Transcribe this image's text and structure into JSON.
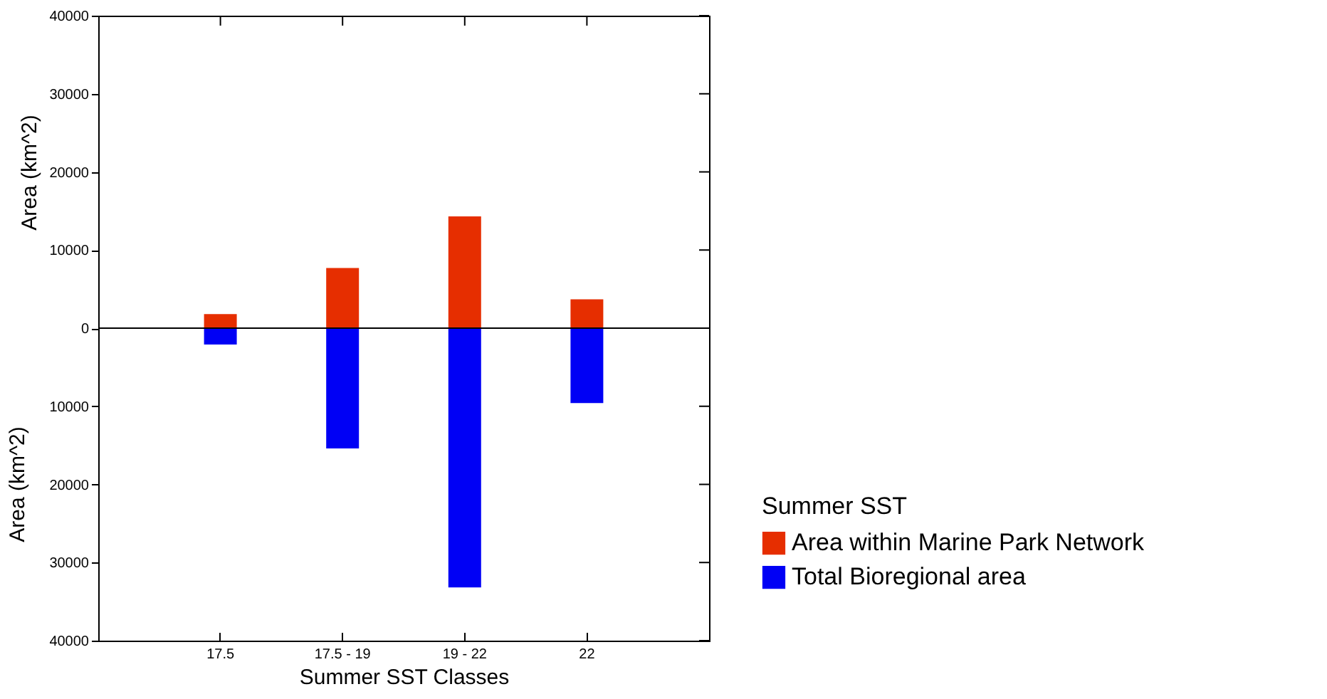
{
  "chart_data": {
    "type": "bar",
    "xlabel": "Summer SST Classes",
    "ylabel": "Area (km^2)",
    "legend_title": "Summer SST",
    "legend": "bottom right",
    "stacked": true,
    "categories": [
      "17.5",
      "17.5 - 19",
      "19 - 22",
      "22"
    ],
    "series": [
      {
        "name": "Area within Marine Park Network",
        "color": "#e62e00",
        "values": [
          1800,
          7700,
          14300,
          3700
        ]
      },
      {
        "name": "Total Bioregional area",
        "color": "#0000f5",
        "values": [
          -2100,
          -15400,
          -33200,
          -9600
        ]
      }
    ],
    "ylim": [
      -40000,
      40000
    ],
    "yticks": [
      {
        "value": -40000,
        "label": "40000"
      },
      {
        "value": -30000,
        "label": "30000"
      },
      {
        "value": -20000,
        "label": "20000"
      },
      {
        "value": -10000,
        "label": "10000"
      },
      0,
      10000,
      20000,
      30000,
      40000
    ],
    "ref_lines": [
      {
        "axis": "y",
        "value": 0
      }
    ],
    "annotations": [
      "Area (km^2)"
    ]
  }
}
